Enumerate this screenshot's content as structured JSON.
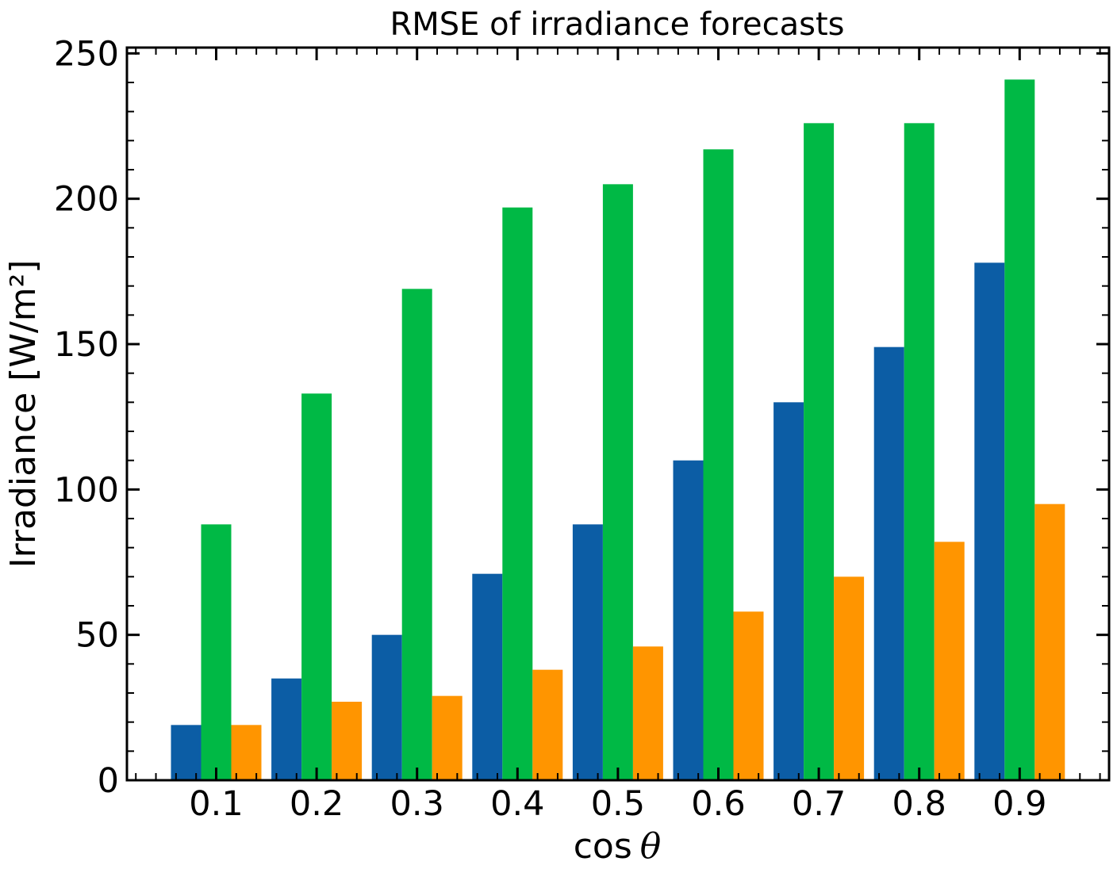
{
  "chart_data": {
    "type": "bar",
    "title": "RMSE of irradiance forecasts",
    "xlabel_prefix": "cos",
    "xlabel_symbol": "θ",
    "ylabel": "Irradiance [W/m²]",
    "categories": [
      "0.1",
      "0.2",
      "0.3",
      "0.4",
      "0.5",
      "0.6",
      "0.7",
      "0.8",
      "0.9"
    ],
    "ylim": [
      0,
      252
    ],
    "yticks": [
      0,
      50,
      100,
      150,
      200,
      250
    ],
    "yticklabels": [
      "0",
      "50",
      "100",
      "150",
      "200",
      "250"
    ],
    "grid": false,
    "series": [
      {
        "color": "#0C5DA5",
        "values": [
          19,
          35,
          50,
          71,
          88,
          110,
          130,
          149,
          178
        ]
      },
      {
        "color": "#00B945",
        "values": [
          88,
          133,
          169,
          197,
          205,
          217,
          226,
          226,
          241
        ]
      },
      {
        "color": "#FF9500",
        "values": [
          19,
          27,
          29,
          38,
          46,
          58,
          70,
          82,
          95
        ]
      }
    ]
  }
}
